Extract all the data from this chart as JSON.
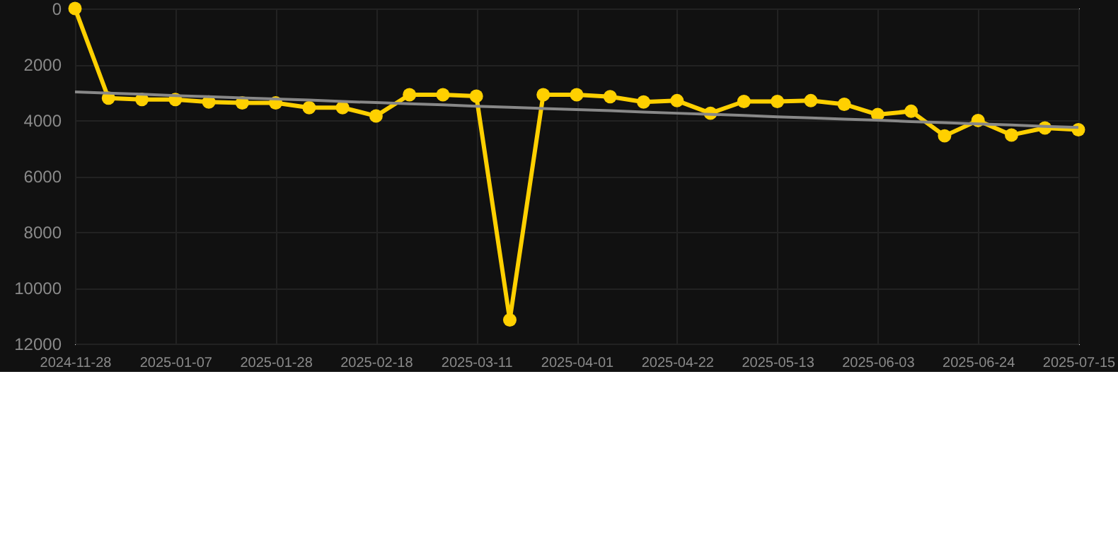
{
  "chart_data": {
    "type": "line",
    "categories": [
      "2024-11-28",
      null,
      null,
      "2025-01-07",
      null,
      null,
      "2025-01-28",
      null,
      null,
      "2025-02-18",
      null,
      null,
      "2025-03-11",
      null,
      null,
      "2025-04-01",
      null,
      null,
      "2025-04-22",
      null,
      null,
      "2025-05-13",
      null,
      null,
      "2025-06-03",
      null,
      null,
      "2025-06-24",
      null,
      null,
      "2025-07-15"
    ],
    "series": [
      {
        "color": "#ffd000",
        "marker": "circle",
        "values": [
          0,
          3210,
          3260,
          3260,
          3350,
          3380,
          3380,
          3550,
          3550,
          3850,
          3090,
          3090,
          3140,
          11150,
          3090,
          3090,
          3160,
          3350,
          3300,
          3750,
          3330,
          3330,
          3300,
          3430,
          3800,
          3680,
          4560,
          4010,
          4530,
          4280,
          4340
        ]
      },
      {
        "color": "#888888",
        "marker": "none",
        "values": [
          2990,
          3030,
          3070,
          3120,
          3160,
          3200,
          3240,
          3280,
          3330,
          3370,
          3410,
          3450,
          3500,
          3540,
          3580,
          3620,
          3660,
          3710,
          3750,
          3790,
          3830,
          3880,
          3920,
          3960,
          4000,
          4050,
          4090,
          4130,
          4170,
          4220,
          4260
        ]
      }
    ],
    "ylim": [
      12000,
      0
    ],
    "yticks": [
      0,
      2000,
      4000,
      6000,
      8000,
      10000,
      12000
    ],
    "grid": true,
    "line_style": "solid"
  }
}
